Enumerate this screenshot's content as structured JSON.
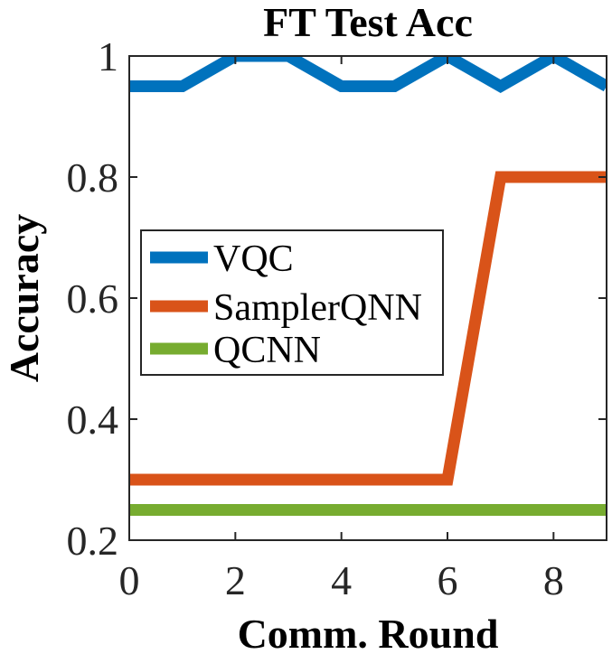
{
  "chart_data": {
    "type": "line",
    "title": "FT Test Acc",
    "xlabel": "Comm. Round",
    "ylabel": "Accuracy",
    "xlim": [
      0,
      9
    ],
    "ylim": [
      0.2,
      1.0
    ],
    "x_ticks": [
      0,
      2,
      4,
      6,
      8
    ],
    "y_ticks": [
      0.2,
      0.4,
      0.6,
      0.8,
      1.0
    ],
    "x_tick_labels": [
      "0",
      "2",
      "4",
      "6",
      "8"
    ],
    "y_tick_labels": [
      "0.2",
      "0.4",
      "0.6",
      "0.8",
      "1"
    ],
    "grid": false,
    "legend_position": "middle-left",
    "x": [
      0,
      1,
      2,
      3,
      4,
      5,
      6,
      7,
      8,
      9
    ],
    "series": [
      {
        "name": "VQC",
        "color": "#0072BD",
        "values": [
          0.95,
          0.95,
          1.0,
          1.0,
          0.95,
          0.95,
          1.0,
          0.95,
          1.0,
          0.95
        ]
      },
      {
        "name": "SamplerQNN",
        "color": "#D95319",
        "values": [
          0.3,
          0.3,
          0.3,
          0.3,
          0.3,
          0.3,
          0.3,
          0.8,
          0.8,
          0.8
        ]
      },
      {
        "name": "QCNN",
        "color": "#77AC30",
        "values": [
          0.25,
          0.25,
          0.25,
          0.25,
          0.25,
          0.25,
          0.25,
          0.25,
          0.25,
          0.25
        ]
      }
    ]
  }
}
